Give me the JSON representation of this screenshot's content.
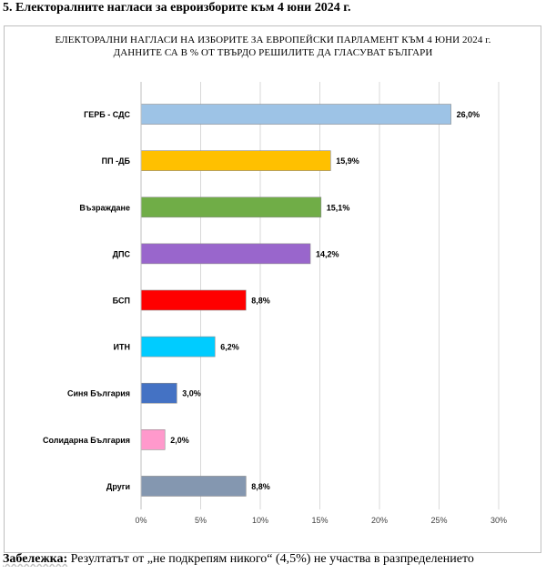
{
  "heading": "5. Електоралните нагласи за евроизборите към 4 юни 2024 г.",
  "chart_data": {
    "type": "bar",
    "orientation": "horizontal",
    "title": "ЕЛЕКТОРАЛНИ НАГЛАСИ НА ИЗБОРИТЕ ЗА ЕВРОПЕЙСКИ ПАРЛАМЕНТ КЪМ 4 ЮНИ 2024 г.",
    "subtitle": "ДАННИТЕ СА В % ОТ ТВЪРДО РЕШИЛИТЕ ДА ГЛАСУВАТ БЪЛГАРИ",
    "categories": [
      "ГЕРБ - СДС",
      "ПП -ДБ",
      "Възраждане",
      "ДПС",
      "БСП",
      "ИТН",
      "Синя България",
      "Солидарна България",
      "Други"
    ],
    "values": [
      26.0,
      15.9,
      15.1,
      14.2,
      8.8,
      6.2,
      3.0,
      2.0,
      8.8
    ],
    "value_labels": [
      "26,0%",
      "15,9%",
      "15,1%",
      "14,2%",
      "8,8%",
      "6,2%",
      "3,0%",
      "2,0%",
      "8,8%"
    ],
    "colors": [
      "#9dc3e6",
      "#ffc000",
      "#70ad47",
      "#9966cc",
      "#ff0000",
      "#00ccff",
      "#4472c4",
      "#ff99cc",
      "#8497b0"
    ],
    "xlim": [
      0,
      30
    ],
    "ticks": [
      0,
      5,
      10,
      15,
      20,
      25,
      30
    ],
    "tick_labels": [
      "0%",
      "5%",
      "10%",
      "15%",
      "20%",
      "25%",
      "30%"
    ],
    "grid": true,
    "xlabel": "",
    "ylabel": ""
  },
  "note": {
    "label": "Забележка:",
    "text": " Резултатът от „не подкрепям никого“ (4,5%) не участва в разпределението"
  }
}
